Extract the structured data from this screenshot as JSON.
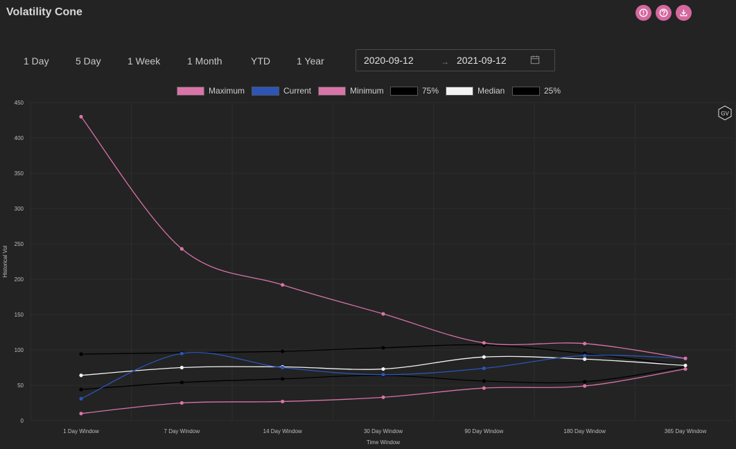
{
  "app": {
    "title": "Volatility Cone"
  },
  "header_icons": [
    {
      "name": "info-icon"
    },
    {
      "name": "help-icon"
    },
    {
      "name": "download-icon"
    }
  ],
  "ranges": [
    "1 Day",
    "5 Day",
    "1 Week",
    "1 Month",
    "YTD",
    "1 Year"
  ],
  "date_range": {
    "start": "2020-09-12",
    "end": "2021-09-12",
    "separator": "→"
  },
  "badge": {
    "text": "GV"
  },
  "colors": {
    "maximum": "#d974a8",
    "current": "#2b55b6",
    "minimum": "#d974a8",
    "p75": "#000000",
    "median": "#f2f2f2",
    "p25": "#000000",
    "accent": "#d4689f",
    "background": "#232323",
    "grid": "#2e2e2e"
  },
  "chart_data": {
    "type": "line",
    "title": "",
    "xlabel": "Time Window",
    "ylabel": "Historical Vol",
    "ylim": [
      0,
      450
    ],
    "yticks": [
      0,
      50,
      100,
      150,
      200,
      250,
      300,
      350,
      400,
      450
    ],
    "grid": true,
    "legend_position": "top",
    "categories": [
      "1 Day Window",
      "7 Day Window",
      "14 Day Window",
      "30 Day Window",
      "90 Day Window",
      "180 Day Window",
      "365 Day Window"
    ],
    "series": [
      {
        "name": "Maximum",
        "color": "#d974a8",
        "values": [
          430,
          243,
          192,
          151,
          110,
          109,
          88
        ]
      },
      {
        "name": "Current",
        "color": "#2b55b6",
        "values": [
          31,
          95,
          75,
          65,
          74,
          92,
          88
        ]
      },
      {
        "name": "Minimum",
        "color": "#d974a8",
        "values": [
          10,
          25,
          27,
          33,
          46,
          49,
          73
        ]
      },
      {
        "name": "75%",
        "color": "#000000",
        "values": [
          94,
          96,
          98,
          103,
          107,
          95,
          78
        ]
      },
      {
        "name": "Median",
        "color": "#f2f2f2",
        "values": [
          64,
          75,
          76,
          73,
          90,
          87,
          78
        ]
      },
      {
        "name": "25%",
        "color": "#000000",
        "values": [
          44,
          54,
          59,
          64,
          56,
          55,
          76
        ]
      }
    ]
  }
}
